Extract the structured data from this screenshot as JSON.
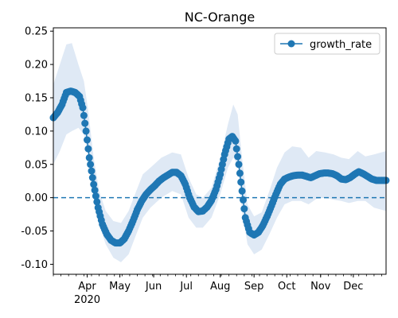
{
  "chart_data": {
    "type": "line",
    "title": "NC-Orange",
    "xlabel": "",
    "ylabel": "",
    "legend": {
      "position": "top-right",
      "entries": [
        "growth_rate"
      ]
    },
    "x_range": [
      "2020-03-01",
      "2020-12-31"
    ],
    "xticks": [
      {
        "date": "2020-04-01",
        "label": "Apr",
        "sublabel": "2020"
      },
      {
        "date": "2020-05-01",
        "label": "May"
      },
      {
        "date": "2020-06-01",
        "label": "Jun"
      },
      {
        "date": "2020-07-01",
        "label": "Jul"
      },
      {
        "date": "2020-08-01",
        "label": "Aug"
      },
      {
        "date": "2020-09-01",
        "label": "Sep"
      },
      {
        "date": "2020-10-01",
        "label": "Oct"
      },
      {
        "date": "2020-11-01",
        "label": "Nov"
      },
      {
        "date": "2020-12-01",
        "label": "Dec"
      }
    ],
    "ylim": [
      -0.115,
      0.255
    ],
    "yticks": [
      "-0.10",
      "-0.05",
      "0.00",
      "0.05",
      "0.10",
      "0.15",
      "0.20",
      "0.25"
    ],
    "reference_line": {
      "y": 0.0,
      "style": "dashed",
      "color": "#1f77b4"
    },
    "colors": {
      "series": "#1f77b4",
      "band": "#dfe9f5"
    },
    "series": [
      {
        "name": "growth_rate",
        "marker": "circle",
        "points": [
          [
            "2020-03-01",
            0.12
          ],
          [
            "2020-03-05",
            0.128
          ],
          [
            "2020-03-09",
            0.14
          ],
          [
            "2020-03-13",
            0.158
          ],
          [
            "2020-03-17",
            0.16
          ],
          [
            "2020-03-21",
            0.158
          ],
          [
            "2020-03-25",
            0.152
          ],
          [
            "2020-03-28",
            0.135
          ],
          [
            "2020-03-31",
            0.1
          ],
          [
            "2020-04-03",
            0.06
          ],
          [
            "2020-04-07",
            0.02
          ],
          [
            "2020-04-11",
            -0.015
          ],
          [
            "2020-04-15",
            -0.04
          ],
          [
            "2020-04-19",
            -0.055
          ],
          [
            "2020-04-23",
            -0.064
          ],
          [
            "2020-04-27",
            -0.068
          ],
          [
            "2020-05-01",
            -0.068
          ],
          [
            "2020-05-05",
            -0.062
          ],
          [
            "2020-05-09",
            -0.05
          ],
          [
            "2020-05-13",
            -0.035
          ],
          [
            "2020-05-17",
            -0.018
          ],
          [
            "2020-05-21",
            -0.005
          ],
          [
            "2020-05-25",
            0.005
          ],
          [
            "2020-05-29",
            0.012
          ],
          [
            "2020-06-02",
            0.018
          ],
          [
            "2020-06-06",
            0.025
          ],
          [
            "2020-06-10",
            0.03
          ],
          [
            "2020-06-14",
            0.034
          ],
          [
            "2020-06-18",
            0.038
          ],
          [
            "2020-06-22",
            0.038
          ],
          [
            "2020-06-26",
            0.033
          ],
          [
            "2020-06-30",
            0.02
          ],
          [
            "2020-07-04",
            0.0
          ],
          [
            "2020-07-08",
            -0.014
          ],
          [
            "2020-07-12",
            -0.021
          ],
          [
            "2020-07-16",
            -0.02
          ],
          [
            "2020-07-20",
            -0.014
          ],
          [
            "2020-07-24",
            -0.004
          ],
          [
            "2020-07-28",
            0.012
          ],
          [
            "2020-08-01",
            0.035
          ],
          [
            "2020-08-05",
            0.065
          ],
          [
            "2020-08-09",
            0.088
          ],
          [
            "2020-08-12",
            0.092
          ],
          [
            "2020-08-15",
            0.085
          ],
          [
            "2020-08-18",
            0.05
          ],
          [
            "2020-08-21",
            0.01
          ],
          [
            "2020-08-24",
            -0.03
          ],
          [
            "2020-08-28",
            -0.052
          ],
          [
            "2020-09-01",
            -0.056
          ],
          [
            "2020-09-05",
            -0.052
          ],
          [
            "2020-09-09",
            -0.042
          ],
          [
            "2020-09-13",
            -0.028
          ],
          [
            "2020-09-17",
            -0.012
          ],
          [
            "2020-09-21",
            0.005
          ],
          [
            "2020-09-25",
            0.02
          ],
          [
            "2020-09-29",
            0.028
          ],
          [
            "2020-10-03",
            0.031
          ],
          [
            "2020-10-07",
            0.033
          ],
          [
            "2020-10-11",
            0.034
          ],
          [
            "2020-10-15",
            0.034
          ],
          [
            "2020-10-19",
            0.032
          ],
          [
            "2020-10-23",
            0.03
          ],
          [
            "2020-10-27",
            0.033
          ],
          [
            "2020-10-31",
            0.036
          ],
          [
            "2020-11-04",
            0.037
          ],
          [
            "2020-11-08",
            0.037
          ],
          [
            "2020-11-12",
            0.036
          ],
          [
            "2020-11-16",
            0.033
          ],
          [
            "2020-11-20",
            0.028
          ],
          [
            "2020-11-24",
            0.027
          ],
          [
            "2020-11-28",
            0.03
          ],
          [
            "2020-12-02",
            0.035
          ],
          [
            "2020-12-06",
            0.039
          ],
          [
            "2020-12-10",
            0.036
          ],
          [
            "2020-12-14",
            0.032
          ],
          [
            "2020-12-18",
            0.028
          ],
          [
            "2020-12-22",
            0.026
          ],
          [
            "2020-12-26",
            0.026
          ],
          [
            "2020-12-31",
            0.026
          ]
        ]
      }
    ],
    "band": {
      "description": "uncertainty interval",
      "upper": [
        [
          "2020-03-01",
          0.17
        ],
        [
          "2020-03-07",
          0.2
        ],
        [
          "2020-03-13",
          0.23
        ],
        [
          "2020-03-18",
          0.232
        ],
        [
          "2020-03-24",
          0.2
        ],
        [
          "2020-03-29",
          0.175
        ],
        [
          "2020-04-02",
          0.13
        ],
        [
          "2020-04-07",
          0.06
        ],
        [
          "2020-04-12",
          0.01
        ],
        [
          "2020-04-18",
          -0.02
        ],
        [
          "2020-04-25",
          -0.035
        ],
        [
          "2020-05-02",
          -0.038
        ],
        [
          "2020-05-09",
          -0.02
        ],
        [
          "2020-05-16",
          0.01
        ],
        [
          "2020-05-22",
          0.035
        ],
        [
          "2020-05-29",
          0.045
        ],
        [
          "2020-06-08",
          0.06
        ],
        [
          "2020-06-18",
          0.068
        ],
        [
          "2020-06-26",
          0.065
        ],
        [
          "2020-07-03",
          0.03
        ],
        [
          "2020-07-10",
          0.005
        ],
        [
          "2020-07-16",
          0.0
        ],
        [
          "2020-07-24",
          0.015
        ],
        [
          "2020-08-01",
          0.06
        ],
        [
          "2020-08-08",
          0.11
        ],
        [
          "2020-08-13",
          0.14
        ],
        [
          "2020-08-17",
          0.125
        ],
        [
          "2020-08-21",
          0.06
        ],
        [
          "2020-08-26",
          -0.01
        ],
        [
          "2020-09-01",
          -0.028
        ],
        [
          "2020-09-08",
          -0.022
        ],
        [
          "2020-09-15",
          0.01
        ],
        [
          "2020-09-22",
          0.045
        ],
        [
          "2020-09-29",
          0.068
        ],
        [
          "2020-10-06",
          0.077
        ],
        [
          "2020-10-14",
          0.075
        ],
        [
          "2020-10-21",
          0.06
        ],
        [
          "2020-10-28",
          0.07
        ],
        [
          "2020-11-05",
          0.068
        ],
        [
          "2020-11-13",
          0.065
        ],
        [
          "2020-11-20",
          0.06
        ],
        [
          "2020-11-27",
          0.058
        ],
        [
          "2020-12-05",
          0.07
        ],
        [
          "2020-12-12",
          0.062
        ],
        [
          "2020-12-20",
          0.065
        ],
        [
          "2020-12-31",
          0.07
        ]
      ],
      "lower": [
        [
          "2020-03-01",
          0.05
        ],
        [
          "2020-03-07",
          0.07
        ],
        [
          "2020-03-13",
          0.095
        ],
        [
          "2020-03-18",
          0.1
        ],
        [
          "2020-03-24",
          0.105
        ],
        [
          "2020-03-29",
          0.095
        ],
        [
          "2020-04-02",
          0.065
        ],
        [
          "2020-04-07",
          0.0
        ],
        [
          "2020-04-12",
          -0.04
        ],
        [
          "2020-04-18",
          -0.07
        ],
        [
          "2020-04-25",
          -0.09
        ],
        [
          "2020-05-02",
          -0.097
        ],
        [
          "2020-05-09",
          -0.085
        ],
        [
          "2020-05-16",
          -0.055
        ],
        [
          "2020-05-22",
          -0.03
        ],
        [
          "2020-05-29",
          -0.015
        ],
        [
          "2020-06-08",
          0.0
        ],
        [
          "2020-06-18",
          0.01
        ],
        [
          "2020-06-26",
          0.005
        ],
        [
          "2020-07-03",
          -0.03
        ],
        [
          "2020-07-10",
          -0.045
        ],
        [
          "2020-07-16",
          -0.045
        ],
        [
          "2020-07-24",
          -0.03
        ],
        [
          "2020-08-01",
          0.005
        ],
        [
          "2020-08-08",
          0.045
        ],
        [
          "2020-08-13",
          0.06
        ],
        [
          "2020-08-17",
          0.05
        ],
        [
          "2020-08-21",
          -0.02
        ],
        [
          "2020-08-26",
          -0.07
        ],
        [
          "2020-09-01",
          -0.085
        ],
        [
          "2020-09-08",
          -0.078
        ],
        [
          "2020-09-15",
          -0.055
        ],
        [
          "2020-09-22",
          -0.03
        ],
        [
          "2020-09-29",
          -0.01
        ],
        [
          "2020-10-06",
          -0.005
        ],
        [
          "2020-10-14",
          -0.005
        ],
        [
          "2020-10-21",
          -0.01
        ],
        [
          "2020-10-28",
          -0.002
        ],
        [
          "2020-11-05",
          0.0
        ],
        [
          "2020-11-13",
          -0.003
        ],
        [
          "2020-11-20",
          -0.005
        ],
        [
          "2020-11-27",
          -0.008
        ],
        [
          "2020-12-05",
          -0.005
        ],
        [
          "2020-12-12",
          -0.005
        ],
        [
          "2020-12-20",
          -0.015
        ],
        [
          "2020-12-31",
          -0.02
        ]
      ]
    }
  }
}
